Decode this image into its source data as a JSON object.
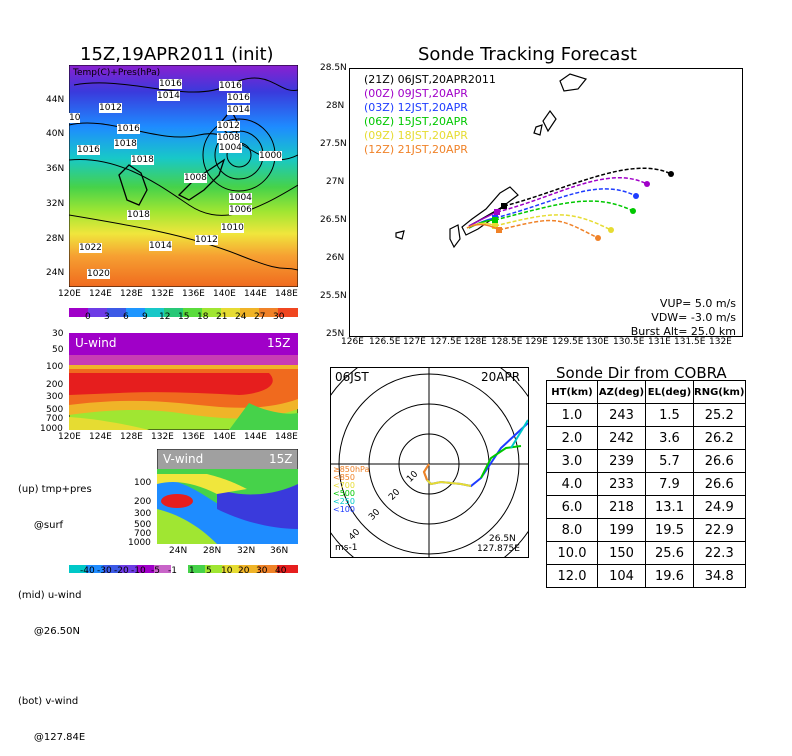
{
  "left": {
    "map_title": "15Z,19APR2011 (init)",
    "map_label": "Temp(C)+Pres(hPa)",
    "lat_ticks": [
      "44N",
      "40N",
      "36N",
      "32N",
      "28N",
      "24N"
    ],
    "lon_ticks": [
      "120E",
      "124E",
      "128E",
      "132E",
      "136E",
      "140E",
      "144E",
      "148E"
    ],
    "pressure_labels": [
      "1016",
      "1012",
      "1014",
      "10",
      "1016",
      "1018",
      "1018",
      "1016",
      "1022",
      "1020",
      "1016",
      "1014",
      "1012",
      "1008",
      "1004",
      "1000",
      "1008",
      "1004",
      "1006",
      "1010",
      "1012",
      "1014",
      "1018",
      "1016"
    ],
    "temp_scale": [
      "0",
      "3",
      "6",
      "9",
      "12",
      "15",
      "18",
      "21",
      "24",
      "27",
      "30"
    ],
    "uwind_label": "U-wind",
    "uwind_time": "15Z",
    "uwind_yticks": [
      "30",
      "50",
      "100",
      "200",
      "300",
      "500",
      "700",
      "1000"
    ],
    "uwind_xticks": [
      "120E",
      "124E",
      "128E",
      "132E",
      "136E",
      "140E",
      "144E",
      "148E"
    ],
    "vwind_label": "V-wind",
    "vwind_time": "15Z",
    "vwind_yticks": [
      "100",
      "200",
      "300",
      "500",
      "700",
      "1000"
    ],
    "vwind_xticks": [
      "24N",
      "28N",
      "32N",
      "36N"
    ],
    "wind_scale": [
      "-40",
      "-30",
      "-20",
      "-10",
      "-5",
      "-1",
      "1",
      "5",
      "10",
      "20",
      "30",
      "40"
    ],
    "notes": [
      "(up) tmp+pres",
      "     @surf",
      "(mid) u-wind",
      "     @26.50N",
      "(bot) v-wind",
      "     @127.84E"
    ]
  },
  "tracking": {
    "title": "Sonde Tracking Forecast",
    "lat_ticks": [
      "28.5N",
      "28N",
      "27.5N",
      "27N",
      "26.5N",
      "26N",
      "25.5N",
      "25N"
    ],
    "lon_ticks": [
      "126E",
      "126.5E",
      "127E",
      "127.5E",
      "128E",
      "128.5E",
      "129E",
      "129.5E",
      "130E",
      "130.5E",
      "131E",
      "131.5E",
      "132E"
    ],
    "launches": [
      {
        "label": "(21Z)  06JST,20APR2011",
        "color": "#000000"
      },
      {
        "label": "(00Z)  09JST,20APR",
        "color": "#a000c8"
      },
      {
        "label": "(03Z)  12JST,20APR",
        "color": "#1e3cff"
      },
      {
        "label": "(06Z)  15JST,20APR",
        "color": "#00c800"
      },
      {
        "label": "(09Z)  18JST,20APR",
        "color": "#e6dc32"
      },
      {
        "label": "(12Z)  21JST,20APR",
        "color": "#f08228"
      }
    ],
    "params": [
      "VUP=  5.0  m/s",
      "VDW= -3.0  m/s",
      "Burst Alt=  25.0  km"
    ]
  },
  "polar": {
    "time_label": "06JST",
    "date_label": "20APR",
    "level_legend": [
      "≥850hPa",
      "<850",
      "<700",
      "<500",
      "<250",
      "<100"
    ],
    "level_colors": [
      "#f08228",
      "#f08228",
      "#e6dc32",
      "#00c800",
      "#00c8c8",
      "#1e3cff"
    ],
    "ring_labels": [
      "10",
      "20",
      "30",
      "40"
    ],
    "unit": "ms-1",
    "location_lat": "26.5N",
    "location_lon": "127.875E"
  },
  "sonde_table": {
    "title": "Sonde Dir from COBRA",
    "headers": [
      "HT(km)",
      "AZ(deg)",
      "EL(deg)",
      "RNG(km)"
    ],
    "rows": [
      [
        "1.0",
        "243",
        "1.5",
        "25.2"
      ],
      [
        "2.0",
        "242",
        "3.6",
        "26.2"
      ],
      [
        "3.0",
        "239",
        "5.7",
        "26.6"
      ],
      [
        "4.0",
        "233",
        "7.9",
        "26.6"
      ],
      [
        "6.0",
        "218",
        "13.1",
        "24.9"
      ],
      [
        "8.0",
        "199",
        "19.5",
        "22.9"
      ],
      [
        "10.0",
        "150",
        "25.6",
        "22.3"
      ],
      [
        "12.0",
        "104",
        "19.6",
        "34.8"
      ]
    ]
  }
}
